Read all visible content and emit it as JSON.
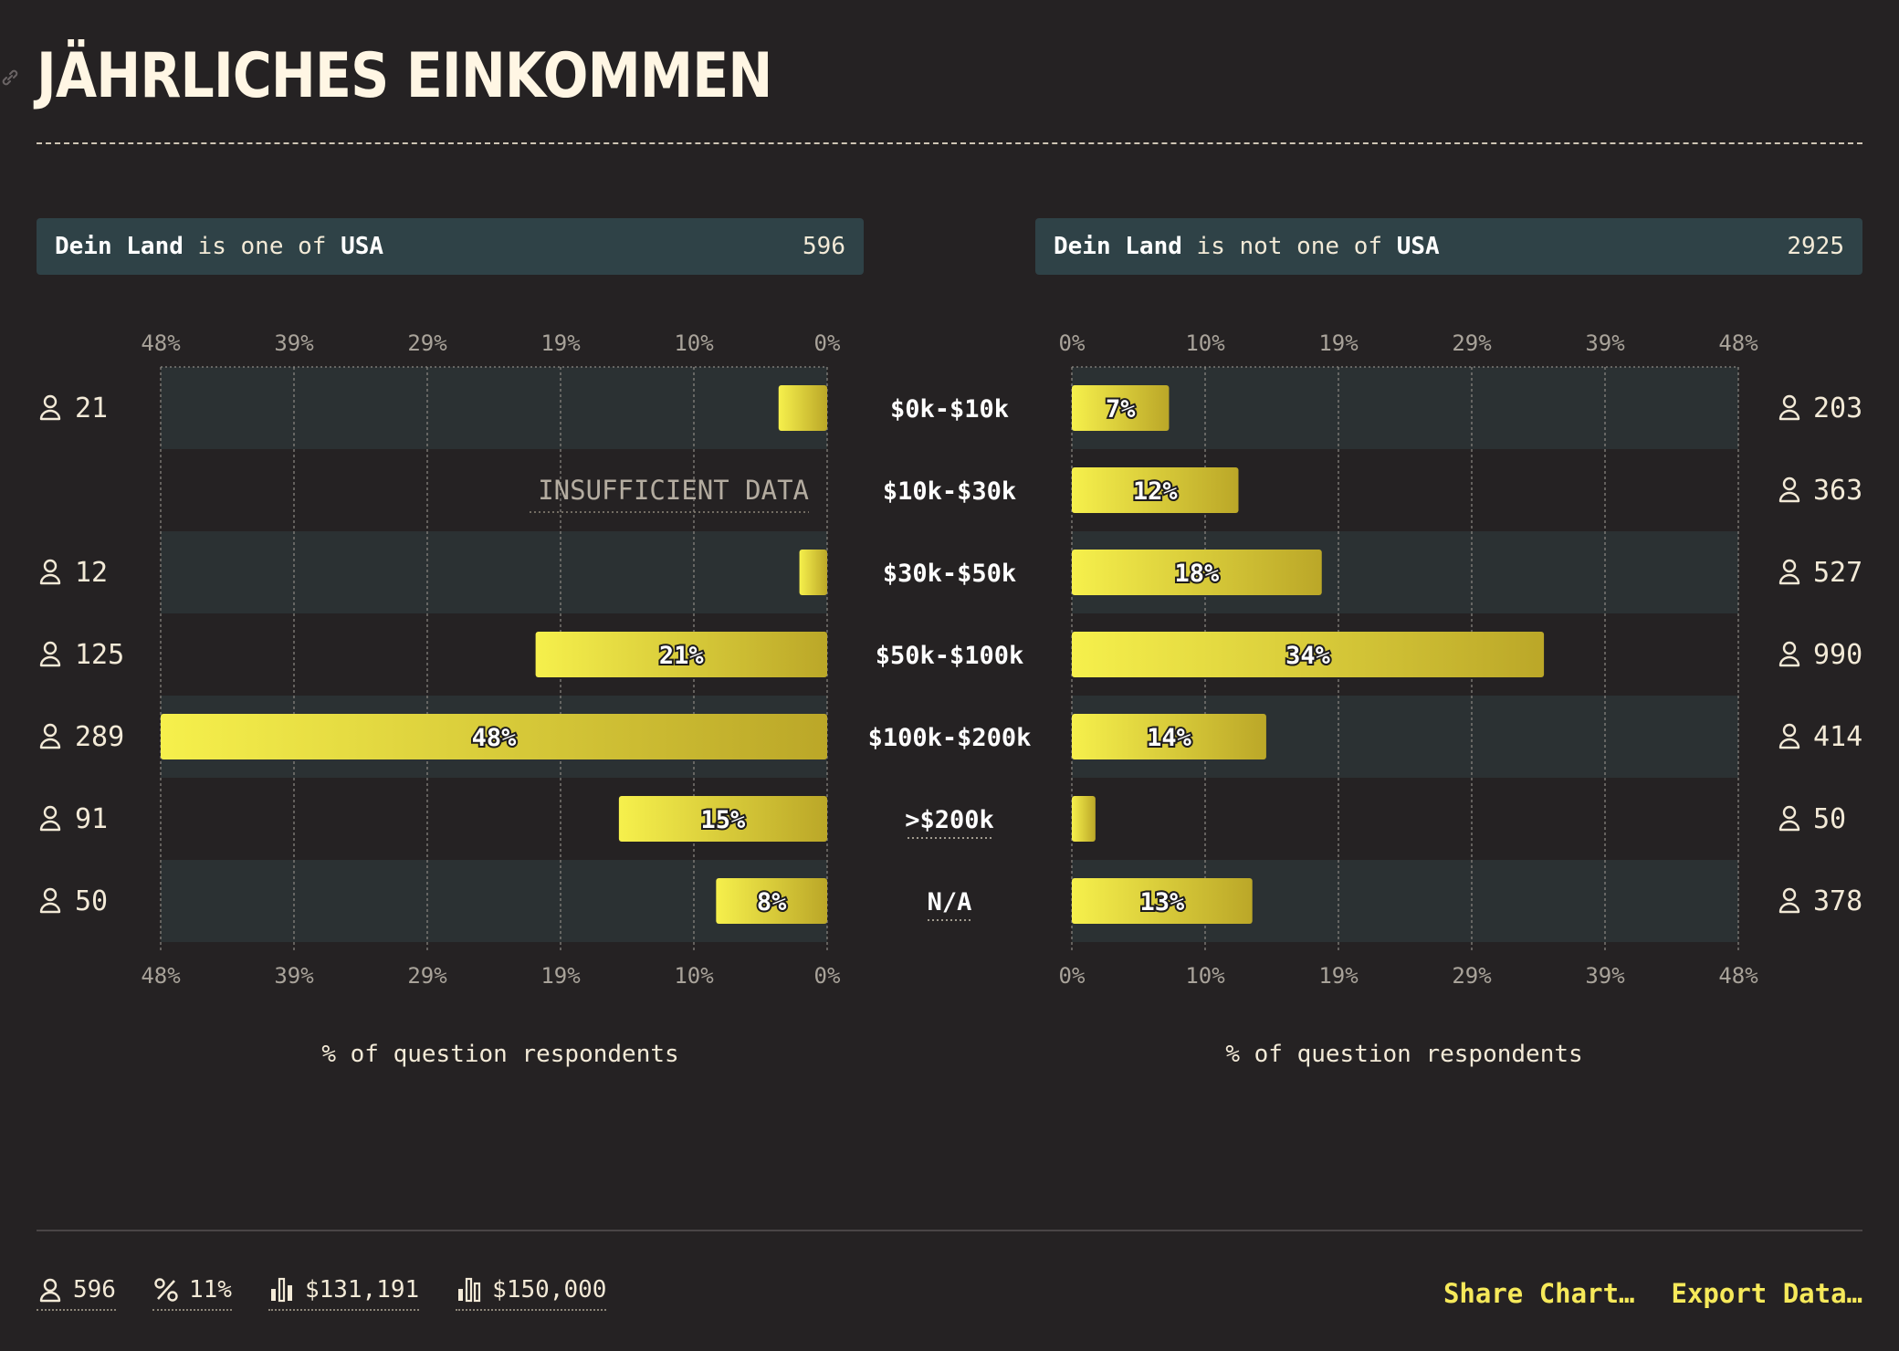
{
  "title": "JÄHRLICHES EINKOMMEN",
  "panels": [
    {
      "field": "Dein Land",
      "op": "is one of",
      "value": "USA",
      "count": "596"
    },
    {
      "field": "Dein Land",
      "op": "is not one of",
      "value": "USA",
      "count": "2925"
    }
  ],
  "axis_title": "% of question respondents",
  "insufficient_label": "INSUFFICIENT DATA",
  "chart_data": {
    "type": "bar",
    "orientation": "horizontal",
    "categories": [
      "$0k-$10k",
      "$10k-$30k",
      "$30k-$50k",
      "$50k-$100k",
      "$100k-$200k",
      ">$200k",
      "N/A"
    ],
    "tick_labels": [
      "0%",
      "10%",
      "19%",
      "29%",
      "39%",
      "48%"
    ],
    "xlim": [
      0,
      48
    ],
    "series": [
      {
        "name": "Dein Land is one of USA",
        "direction": "left",
        "values": [
          3.5,
          null,
          2,
          21,
          48,
          15,
          8
        ],
        "labels": [
          "",
          "",
          "",
          "21%",
          "48%",
          "15%",
          "8%"
        ],
        "counts": [
          "21",
          "",
          "12",
          "125",
          "289",
          "91",
          "50"
        ]
      },
      {
        "name": "Dein Land is not one of USA",
        "direction": "right",
        "values": [
          7,
          12,
          18,
          34,
          14,
          1.7,
          13
        ],
        "labels": [
          "7%",
          "12%",
          "18%",
          "34%",
          "14%",
          "",
          "13%"
        ],
        "counts": [
          "203",
          "363",
          "527",
          "990",
          "414",
          "50",
          "378"
        ]
      }
    ],
    "grid": true,
    "colors": {
      "bar_start": "#f6f04c",
      "bar_end": "#bba728",
      "band": "#2b3133",
      "grid": "#8d8a84"
    }
  },
  "footer": {
    "stats": [
      {
        "icon": "person-icon",
        "value": "596"
      },
      {
        "icon": "percent-icon",
        "value": "11%"
      },
      {
        "icon": "median-bars-icon",
        "value": "$131,191"
      },
      {
        "icon": "bars-icon",
        "value": "$150,000"
      }
    ],
    "share_label": "Share Chart…",
    "export_label": "Export Data…"
  }
}
